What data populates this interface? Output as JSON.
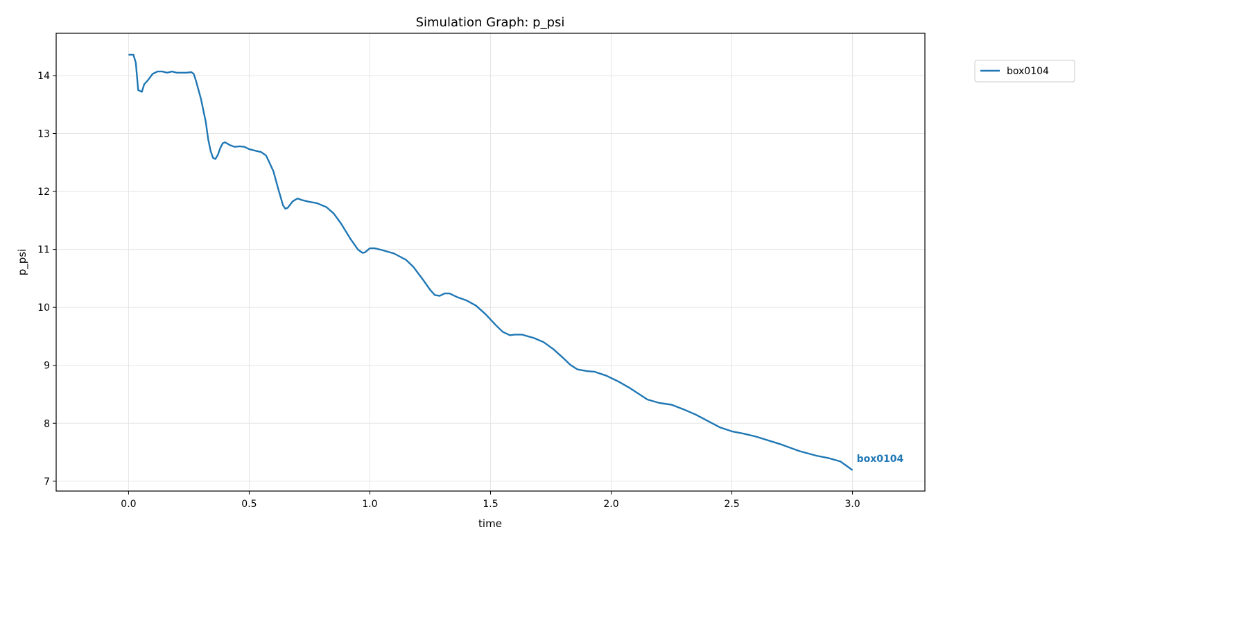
{
  "chart_data": {
    "type": "line",
    "title": "Simulation Graph: p_psi",
    "xlabel": "time",
    "ylabel": "p_psi",
    "xlim": [
      -0.3,
      3.3
    ],
    "ylim": [
      6.83,
      14.73
    ],
    "xticks": [
      "0.0",
      "0.5",
      "1.0",
      "1.5",
      "2.0",
      "2.5",
      "3.0"
    ],
    "yticks": [
      "7",
      "8",
      "9",
      "10",
      "11",
      "12",
      "13",
      "14"
    ],
    "grid": true,
    "legend_placement": "outside-top-right",
    "series": [
      {
        "name": "box0104",
        "color": "#1f77b4",
        "end_label": "box0104",
        "x": [
          0.0,
          0.02,
          0.03,
          0.04,
          0.055,
          0.065,
          0.08,
          0.1,
          0.12,
          0.14,
          0.16,
          0.18,
          0.2,
          0.24,
          0.26,
          0.27,
          0.28,
          0.3,
          0.32,
          0.33,
          0.34,
          0.35,
          0.36,
          0.37,
          0.38,
          0.39,
          0.4,
          0.42,
          0.44,
          0.46,
          0.48,
          0.5,
          0.52,
          0.55,
          0.57,
          0.6,
          0.62,
          0.64,
          0.65,
          0.66,
          0.68,
          0.7,
          0.72,
          0.75,
          0.78,
          0.82,
          0.85,
          0.88,
          0.92,
          0.95,
          0.97,
          0.98,
          1.0,
          1.02,
          1.05,
          1.1,
          1.15,
          1.18,
          1.22,
          1.25,
          1.27,
          1.29,
          1.31,
          1.33,
          1.36,
          1.4,
          1.44,
          1.48,
          1.52,
          1.55,
          1.58,
          1.6,
          1.63,
          1.68,
          1.72,
          1.76,
          1.8,
          1.83,
          1.86,
          1.9,
          1.93,
          1.98,
          2.03,
          2.08,
          2.15,
          2.2,
          2.25,
          2.3,
          2.35,
          2.4,
          2.45,
          2.5,
          2.55,
          2.6,
          2.7,
          2.78,
          2.85,
          2.9,
          2.95,
          3.0
        ],
        "y": [
          14.36,
          14.36,
          14.22,
          13.75,
          13.72,
          13.85,
          13.92,
          14.03,
          14.07,
          14.07,
          14.05,
          14.07,
          14.05,
          14.05,
          14.06,
          14.03,
          13.9,
          13.6,
          13.2,
          12.9,
          12.7,
          12.58,
          12.56,
          12.63,
          12.75,
          12.83,
          12.85,
          12.8,
          12.77,
          12.78,
          12.77,
          12.73,
          12.71,
          12.68,
          12.62,
          12.35,
          12.05,
          11.76,
          11.7,
          11.72,
          11.83,
          11.88,
          11.85,
          11.82,
          11.8,
          11.73,
          11.62,
          11.45,
          11.18,
          11.0,
          10.94,
          10.95,
          11.02,
          11.02,
          10.99,
          10.93,
          10.82,
          10.7,
          10.48,
          10.3,
          10.21,
          10.2,
          10.24,
          10.24,
          10.18,
          10.12,
          10.03,
          9.88,
          9.7,
          9.58,
          9.52,
          9.53,
          9.53,
          9.47,
          9.4,
          9.28,
          9.13,
          9.01,
          8.93,
          8.9,
          8.89,
          8.82,
          8.72,
          8.6,
          8.41,
          8.35,
          8.32,
          8.24,
          8.15,
          8.04,
          7.93,
          7.86,
          7.82,
          7.77,
          7.64,
          7.52,
          7.44,
          7.4,
          7.34,
          7.19
        ]
      }
    ]
  }
}
